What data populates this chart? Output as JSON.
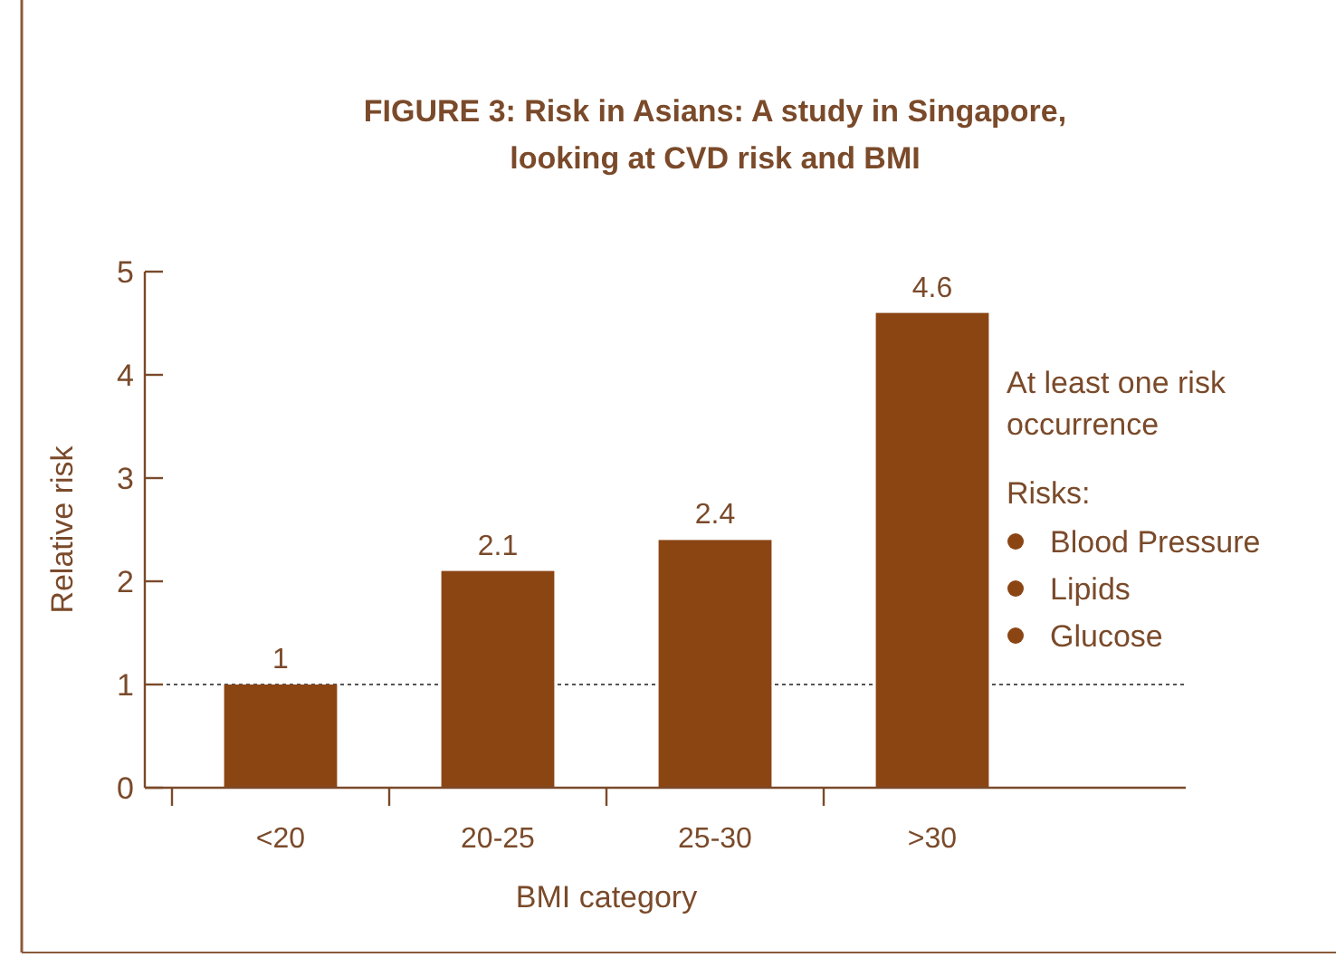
{
  "chart_data": {
    "type": "bar",
    "title": "FIGURE 3: Risk in Asians: A study in Singapore, looking at CVD risk and BMI",
    "xlabel": "BMI category",
    "ylabel": "Relative risk",
    "categories": [
      "<20",
      "20-25",
      "25-30",
      ">30"
    ],
    "values": [
      1,
      2.1,
      2.4,
      4.6
    ],
    "color": "#8b4513",
    "data_labels": true,
    "ylim": [
      0,
      5
    ],
    "yticks": [
      0,
      1,
      2,
      3,
      4,
      5
    ],
    "grid": false,
    "ref_lines": [
      {
        "axis": "y",
        "value": 1,
        "line_style": "dotted",
        "color": "#555555"
      }
    ],
    "annotations": [
      "At least one risk occurrence",
      "Risks:",
      "Blood Pressure",
      "Lipids",
      "Glucose"
    ]
  }
}
